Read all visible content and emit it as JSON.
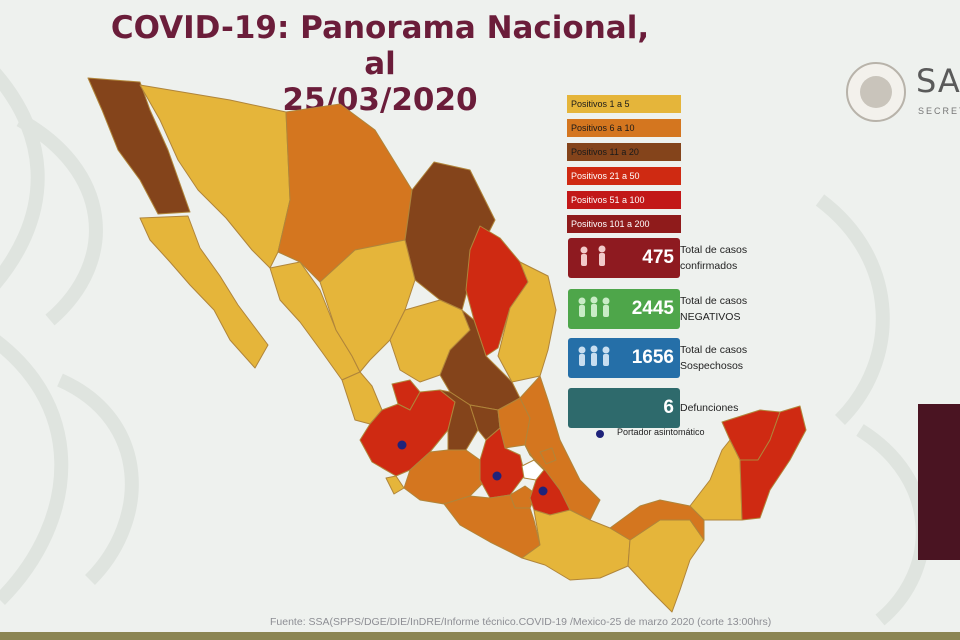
{
  "header": {
    "title_line1": "COVID-19: Panorama Nacional, al",
    "title_line2": "25/03/2020"
  },
  "logo": {
    "text": "SA",
    "subtext": "SECRET"
  },
  "legend": [
    {
      "label": "Positivos 1 a 5",
      "color": "#e5b53a"
    },
    {
      "label": "Positivos 6 a 10",
      "color": "#d4761f"
    },
    {
      "label": "Positivos 11 a 20",
      "color": "#84441b"
    },
    {
      "label": "Positivos 21 a 50",
      "color": "#cf2a12"
    },
    {
      "label": "Positivos 51 a 100",
      "color": "#c21818"
    },
    {
      "label": "Positivos 101 a 200",
      "color": "#8f1b1b"
    }
  ],
  "stats": [
    {
      "value": "475",
      "label": "Total de casos confirmados",
      "color": "#8e1a20",
      "icon": "people-icon"
    },
    {
      "value": "2445",
      "label": "Total de casos NEGATIVOS",
      "color": "#4ea64a",
      "icon": "people-icon"
    },
    {
      "value": "1656",
      "label": "Total de casos Sospechosos",
      "color": "#256fa8",
      "icon": "people-icon"
    },
    {
      "value": "6",
      "label": "Defunciones",
      "color": "#2e6a6c",
      "icon": ""
    }
  ],
  "marker_legend": {
    "label": "Portador asintomático",
    "color": "#1f237a"
  },
  "source": "Fuente: SSA(SPPS/DGE/DIE/InDRE/Informe técnico.COVID-19 /Mexico-25 de marzo 2020 (corte 13:00hrs)",
  "map": {
    "states": [
      {
        "name": "Baja California",
        "category": "Positivos 11 a 20"
      },
      {
        "name": "Baja California Sur",
        "category": "Positivos 1 a 5"
      },
      {
        "name": "Sonora",
        "category": "Positivos 1 a 5"
      },
      {
        "name": "Chihuahua",
        "category": "Positivos 6 a 10"
      },
      {
        "name": "Coahuila",
        "category": "Positivos 11 a 20"
      },
      {
        "name": "Nuevo León",
        "category": "Positivos 21 a 50"
      },
      {
        "name": "Tamaulipas",
        "category": "Positivos 1 a 5"
      },
      {
        "name": "Sinaloa",
        "category": "Positivos 1 a 5"
      },
      {
        "name": "Durango",
        "category": "Positivos 1 a 5"
      },
      {
        "name": "Zacatecas",
        "category": "Positivos 1 a 5"
      },
      {
        "name": "San Luis Potosí",
        "category": "Positivos 11 a 20"
      },
      {
        "name": "Nayarit",
        "category": "Positivos 1 a 5"
      },
      {
        "name": "Aguascalientes",
        "category": "Positivos 21 a 50"
      },
      {
        "name": "Jalisco",
        "category": "Positivos 21 a 50"
      },
      {
        "name": "Guanajuato",
        "category": "Positivos 11 a 20"
      },
      {
        "name": "Querétaro",
        "category": "Positivos 11 a 20"
      },
      {
        "name": "Hidalgo",
        "category": "Positivos 6 a 10"
      },
      {
        "name": "Veracruz",
        "category": "Positivos 6 a 10"
      },
      {
        "name": "Colima",
        "category": "Positivos 1 a 5"
      },
      {
        "name": "Michoacán",
        "category": "Positivos 6 a 10"
      },
      {
        "name": "Estado de México",
        "category": "Positivos 21 a 50"
      },
      {
        "name": "Ciudad de México",
        "category": "Positivos 101 a 200"
      },
      {
        "name": "Morelos",
        "category": "Positivos 6 a 10"
      },
      {
        "name": "Puebla",
        "category": "Positivos 21 a 50"
      },
      {
        "name": "Tlaxcala",
        "category": "Positivos 6 a 10"
      },
      {
        "name": "Guerrero",
        "category": "Positivos 6 a 10"
      },
      {
        "name": "Oaxaca",
        "category": "Positivos 1 a 5"
      },
      {
        "name": "Chiapas",
        "category": "Positivos 1 a 5"
      },
      {
        "name": "Tabasco",
        "category": "Positivos 6 a 10"
      },
      {
        "name": "Campeche",
        "category": "Positivos 1 a 5"
      },
      {
        "name": "Yucatán",
        "category": "Positivos 21 a 50"
      },
      {
        "name": "Quintana Roo",
        "category": "Positivos 21 a 50"
      }
    ],
    "asymptomatic_carriers": [
      "Jalisco",
      "Estado de México",
      "Puebla"
    ]
  }
}
